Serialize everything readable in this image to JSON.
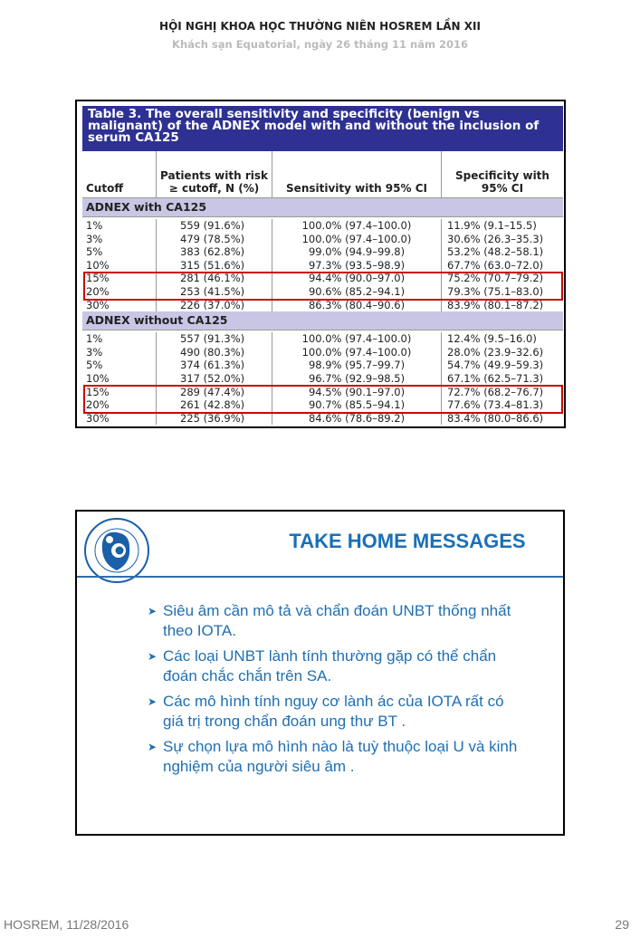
{
  "header": {
    "title": "HỘI NGHỊ KHOA HỌC THƯỜNG NIÊN HOSREM LẦN XII",
    "subtitle": "Khách sạn Equatorial, ngày 26 tháng 11 năm 2016"
  },
  "table": {
    "title": "Table 3. The overall sensitivity and specificity (benign vs malignant) of the ADNEX model with and without the inclusion of serum CA125",
    "columns": [
      "Cutoff",
      "Patients with risk ≥ cutoff, N (%)",
      "Sensitivity with 95% CI",
      "Specificity with 95% CI"
    ],
    "sections": [
      {
        "label": "ADNEX with CA125",
        "rows": [
          [
            "1%",
            "559 (91.6%)",
            "100.0% (97.4–100.0)",
            "11.9% (9.1–15.5)"
          ],
          [
            "3%",
            "479 (78.5%)",
            "100.0% (97.4–100.0)",
            "30.6% (26.3–35.3)"
          ],
          [
            "5%",
            "383 (62.8%)",
            "99.0% (94.9–99.8)",
            "53.2% (48.2–58.1)"
          ],
          [
            "10%",
            "315 (51.6%)",
            "97.3% (93.5–98.9)",
            "67.7% (63.0–72.0)"
          ],
          [
            "15%",
            "281 (46.1%)",
            "94.4% (90.0–97.0)",
            "75.2% (70.7–79.2)"
          ],
          [
            "20%",
            "253 (41.5%)",
            "90.6% (85.2–94.1)",
            "79.3% (75.1–83.0)"
          ],
          [
            "30%",
            "226 (37.0%)",
            "86.3% (80.4–90.6)",
            "83.9% (80.1–87.2)"
          ]
        ]
      },
      {
        "label": "ADNEX without CA125",
        "rows": [
          [
            "1%",
            "557 (91.3%)",
            "100.0% (97.4–100.0)",
            "12.4% (9.5–16.0)"
          ],
          [
            "3%",
            "490 (80.3%)",
            "100.0% (97.4–100.0)",
            "28.0% (23.9–32.6)"
          ],
          [
            "5%",
            "374 (61.3%)",
            "98.9% (95.7–99.7)",
            "54.7% (49.9–59.3)"
          ],
          [
            "10%",
            "317 (52.0%)",
            "96.7% (92.9–98.5)",
            "67.1% (62.5–71.3)"
          ],
          [
            "15%",
            "289 (47.4%)",
            "94.5% (90.1–97.0)",
            "72.7% (68.2–76.7)"
          ],
          [
            "20%",
            "261 (42.8%)",
            "90.7% (85.5–94.1)",
            "77.6% (73.4–81.3)"
          ],
          [
            "30%",
            "225 (36.9%)",
            "84.6% (78.6–89.2)",
            "83.4% (80.0–86.6)"
          ]
        ]
      }
    ],
    "highlighted_cutoffs": [
      "15%",
      "20%"
    ],
    "highlight_color": "#cc0000"
  },
  "slide2": {
    "logo_text": "BỆNH VIỆN TỪ DŨ THÀNH PHỐ HỒ CHÍ MINH",
    "title": "TAKE HOME MESSAGES",
    "bullets": [
      "Siêu âm cần mô tả và chẩn đoán UNBT thống nhất theo IOTA.",
      "Các loại UNBT lành tính thường gặp có thể chẩn đoán chắc chắn trên SA.",
      "Các mô hình tính nguy cơ lành ác của IOTA rất có giá trị trong chẩn đoán ung thư BT .",
      "Sự chọn lựa mô hình nào là tuỳ thuộc loại U và kinh nghiệm của người siêu âm ."
    ]
  },
  "footer": {
    "left": "HOSREM, 11/28/2016",
    "page": "29"
  }
}
